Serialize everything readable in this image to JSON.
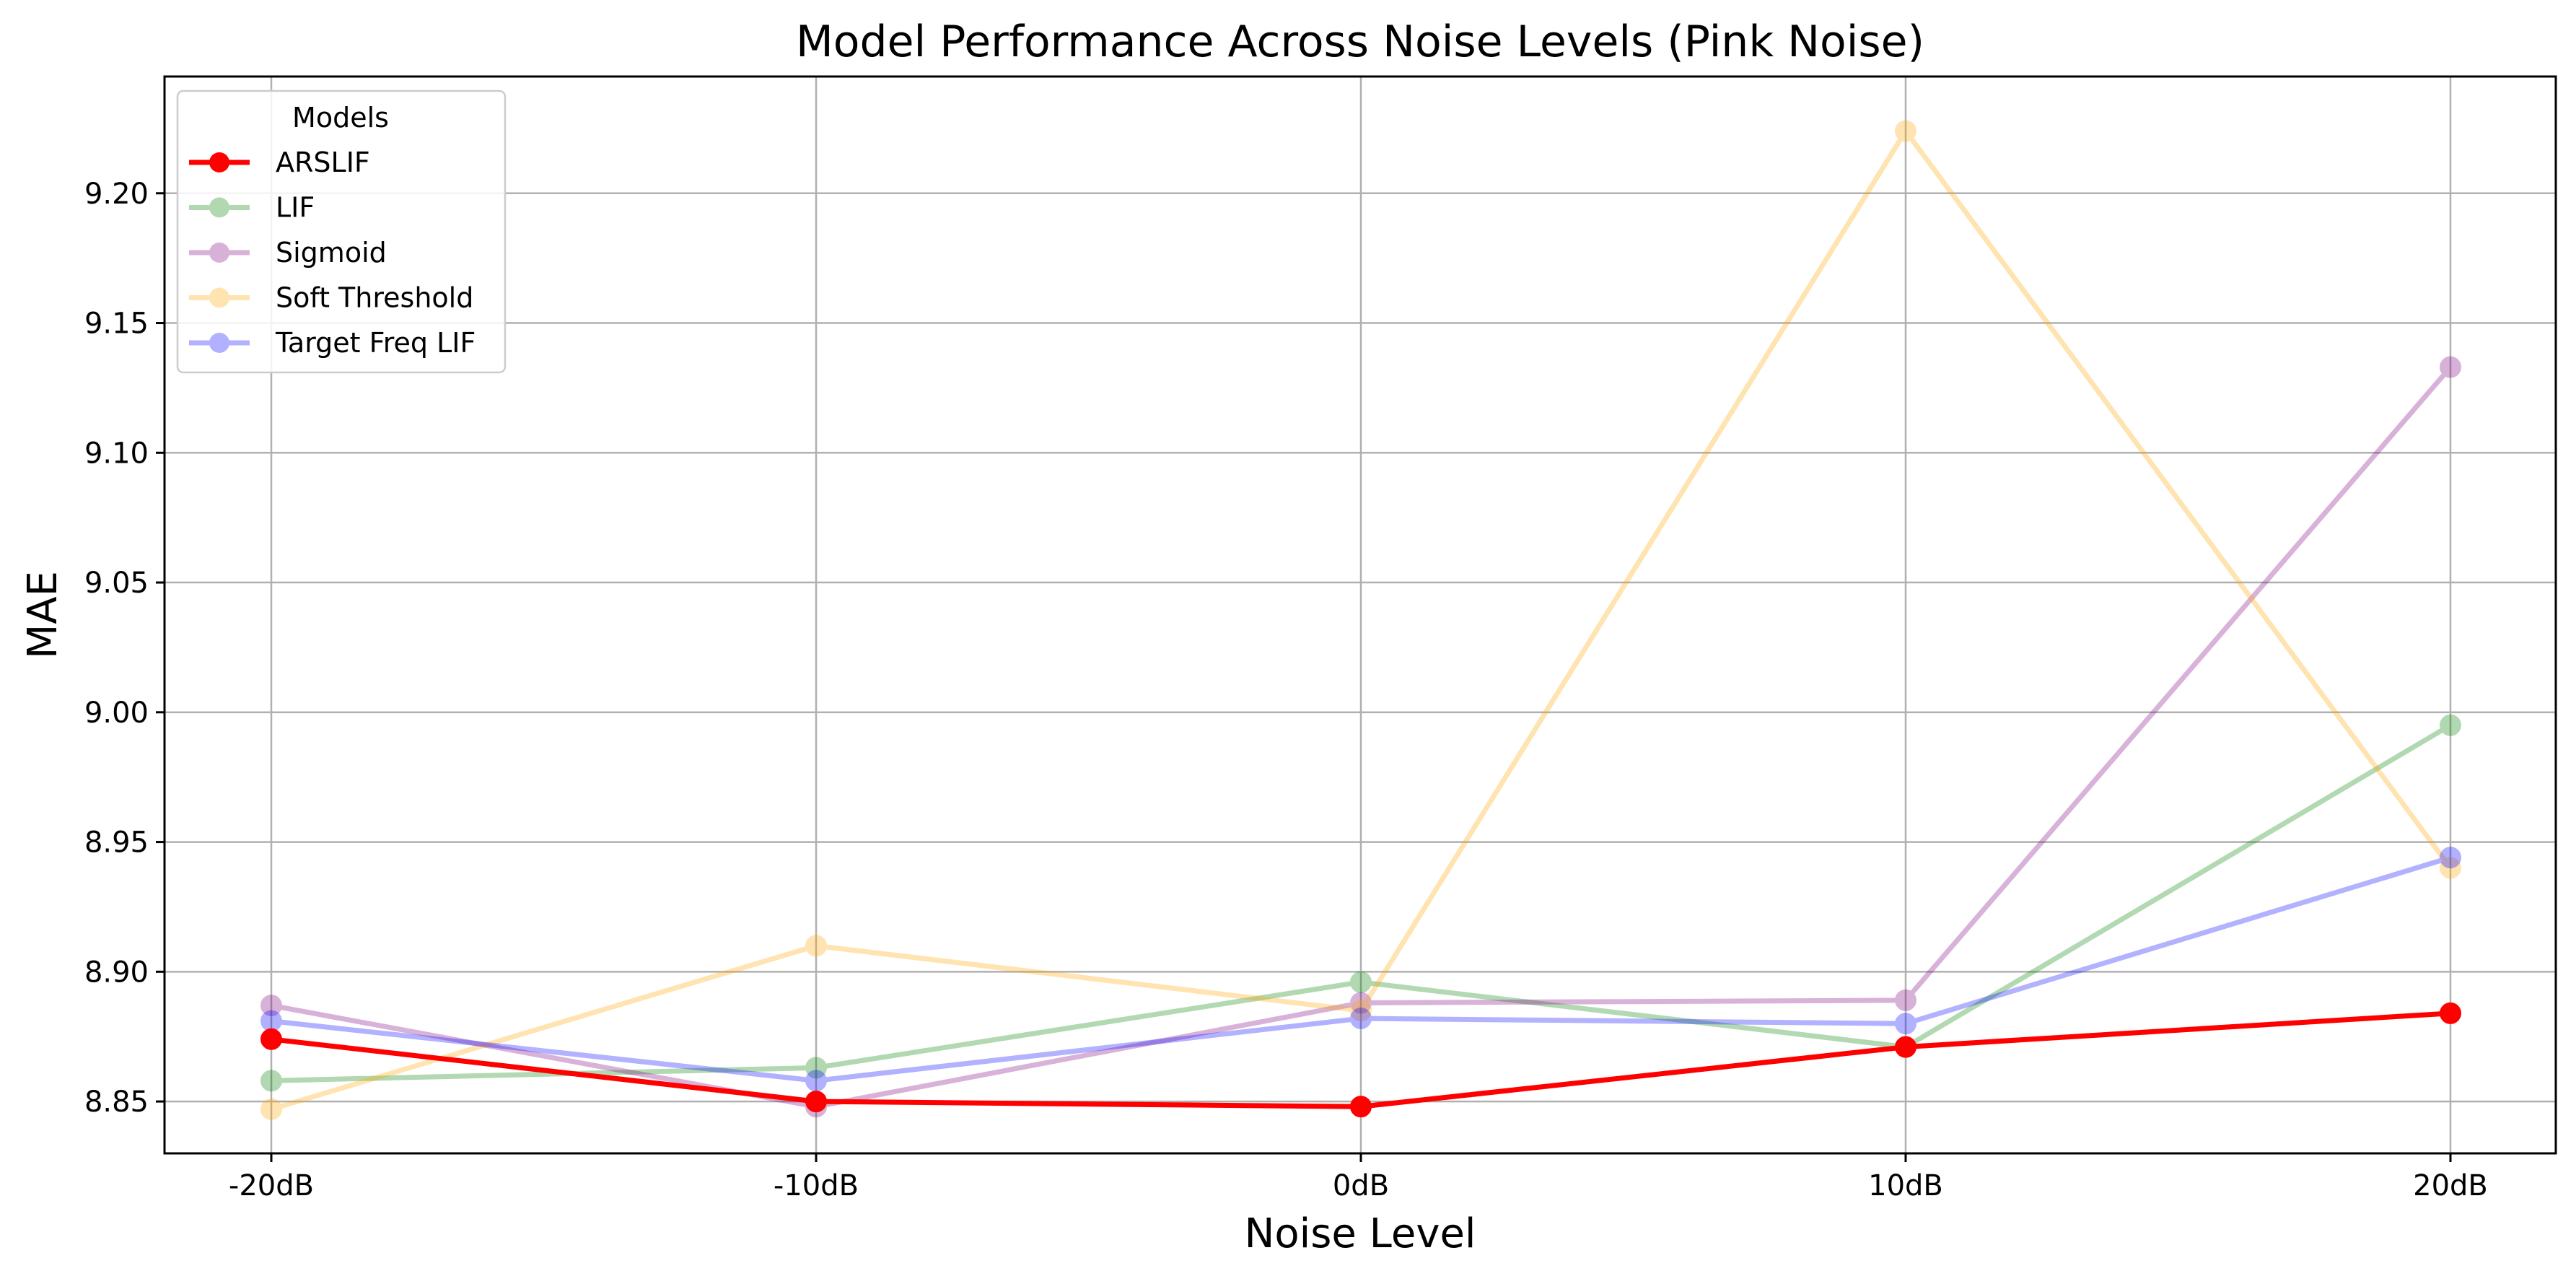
{
  "chart_data": {
    "type": "line",
    "title": "Model Performance Across Noise Levels (Pink Noise)",
    "xlabel": "Noise Level",
    "ylabel": "MAE",
    "categories": [
      "-20dB",
      "-10dB",
      "0dB",
      "10dB",
      "20dB"
    ],
    "ylim": [
      8.83,
      9.245
    ],
    "yticks": [
      8.85,
      8.9,
      8.95,
      9.0,
      9.05,
      9.1,
      9.15,
      9.2
    ],
    "ytick_labels": [
      "8.85",
      "8.90",
      "8.95",
      "9.00",
      "9.05",
      "9.10",
      "9.15",
      "9.20"
    ],
    "grid": true,
    "legend": {
      "title": "Models",
      "placement": "top-left"
    },
    "series": [
      {
        "name": "ARSLIF",
        "color": "#ff0000",
        "opacity": 1.0,
        "emphasis": true,
        "values": [
          8.874,
          8.85,
          8.848,
          8.871,
          8.884
        ]
      },
      {
        "name": "LIF",
        "color": "#008000",
        "opacity": 0.3,
        "emphasis": false,
        "values": [
          8.858,
          8.863,
          8.896,
          8.871,
          8.995
        ]
      },
      {
        "name": "Sigmoid",
        "color": "#800080",
        "opacity": 0.3,
        "emphasis": false,
        "values": [
          8.887,
          8.848,
          8.888,
          8.889,
          9.133
        ]
      },
      {
        "name": "Soft Threshold",
        "color": "#ffa500",
        "opacity": 0.3,
        "emphasis": false,
        "values": [
          8.847,
          8.91,
          8.885,
          9.224,
          8.94
        ]
      },
      {
        "name": "Target Freq LIF",
        "color": "#0000ff",
        "opacity": 0.3,
        "emphasis": false,
        "values": [
          8.881,
          8.858,
          8.882,
          8.88,
          8.944
        ]
      }
    ]
  }
}
